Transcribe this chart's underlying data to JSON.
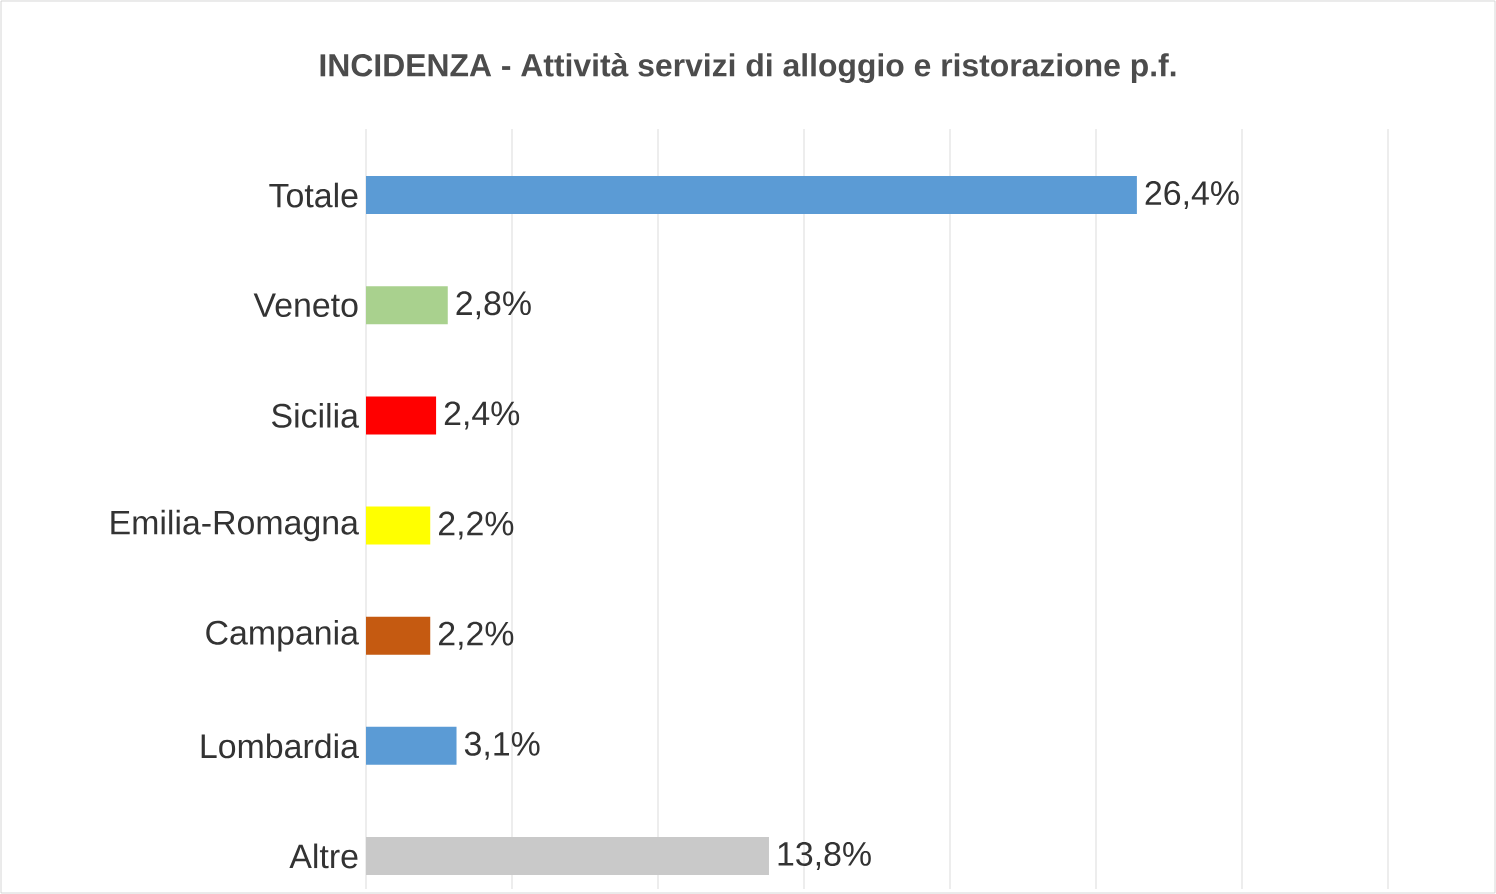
{
  "chart_data": {
    "type": "bar",
    "orientation": "horizontal",
    "title": "INCIDENZA - Attività servizi di alloggio e ristorazione p.f.",
    "categories": [
      "Totale",
      "Veneto",
      "Sicilia",
      "Emilia-Romagna",
      "Campania",
      "Lombardia",
      "Altre"
    ],
    "values": [
      26.4,
      2.8,
      2.4,
      2.2,
      2.2,
      3.1,
      13.8
    ],
    "value_labels": [
      "26,4%",
      "2,8%",
      "2,4%",
      "2,2%",
      "2,2%",
      "3,1%",
      "13,8%"
    ],
    "colors": [
      "#5b9bd5",
      "#a9d18e",
      "#ff0000",
      "#ffff00",
      "#c55a11",
      "#5b9bd5",
      "#c9c9c9"
    ],
    "xlim": [
      0,
      35
    ],
    "xticks": [
      {
        "value": 0,
        "label": null
      },
      {
        "value": 5,
        "label": null
      },
      {
        "value": 10,
        "label": null
      },
      {
        "value": 15,
        "label": null
      },
      {
        "value": 20,
        "label": null
      },
      {
        "value": 25,
        "label": null
      },
      {
        "value": 30,
        "label": null
      },
      {
        "value": 35,
        "label": null
      }
    ],
    "grid": "x",
    "tick_labels": "y"
  }
}
